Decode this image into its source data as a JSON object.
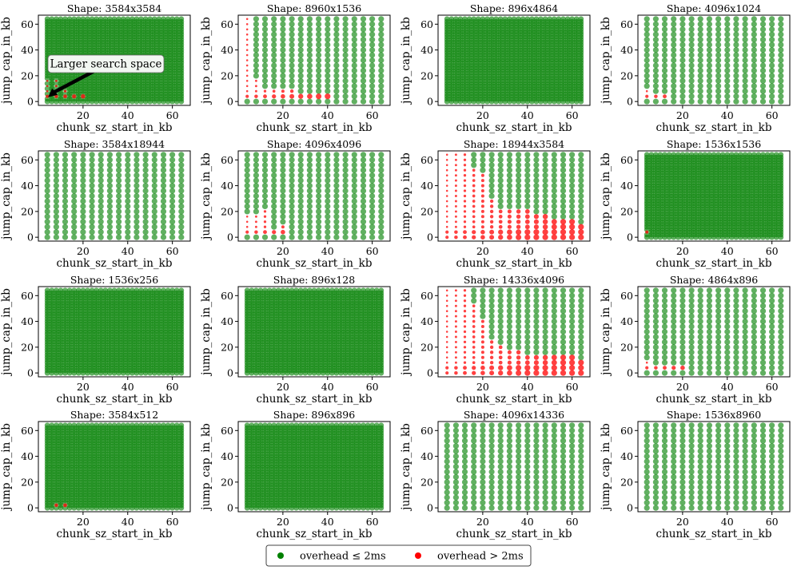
{
  "figure": {
    "legend": {
      "items": [
        {
          "label": "overhead ≤ 2ms",
          "color": "#008000"
        },
        {
          "label": "overhead > 2ms",
          "color": "#ff0000"
        }
      ]
    },
    "annotation": {
      "text": "Larger search space",
      "panel_index": 0,
      "target": {
        "x": 4,
        "y": 4
      }
    }
  },
  "chart_data": [
    {
      "type": "scatter",
      "title": "Shape: 3584x3584",
      "xlabel": "chunk_sz_start_in_kb",
      "ylabel": "jump_cap_in_kb",
      "xlim": [
        0,
        68
      ],
      "ylim": [
        -3,
        67
      ],
      "xticks": [
        20,
        40,
        60
      ],
      "yticks": [
        0,
        20,
        40,
        60
      ],
      "grid": "dense",
      "red_points": [
        [
          4,
          4
        ],
        [
          4,
          8
        ],
        [
          4,
          12
        ],
        [
          4,
          16
        ],
        [
          8,
          4
        ],
        [
          8,
          8
        ],
        [
          8,
          12
        ],
        [
          8,
          16
        ],
        [
          12,
          4
        ],
        [
          12,
          8
        ],
        [
          16,
          4
        ],
        [
          20,
          4
        ]
      ]
    },
    {
      "type": "scatter",
      "title": "Shape: 8960x1536",
      "xlabel": "chunk_sz_start_in_kb",
      "ylabel": "jump_cap_in_kb",
      "xlim": [
        0,
        68
      ],
      "ylim": [
        -3,
        67
      ],
      "xticks": [
        20,
        40,
        60
      ],
      "yticks": [
        0,
        20,
        40,
        60
      ],
      "grid": "normal",
      "red_points": [
        [
          4,
          4
        ],
        [
          4,
          8
        ],
        [
          4,
          12
        ],
        [
          4,
          16
        ],
        [
          4,
          20
        ],
        [
          4,
          24
        ],
        [
          4,
          28
        ],
        [
          4,
          32
        ],
        [
          4,
          36
        ],
        [
          4,
          40
        ],
        [
          4,
          44
        ],
        [
          4,
          48
        ],
        [
          4,
          52
        ],
        [
          4,
          56
        ],
        [
          4,
          60
        ],
        [
          4,
          64
        ],
        [
          8,
          4
        ],
        [
          8,
          8
        ],
        [
          8,
          12
        ],
        [
          8,
          16
        ],
        [
          12,
          4
        ],
        [
          12,
          8
        ],
        [
          16,
          4
        ],
        [
          16,
          8
        ],
        [
          20,
          4
        ],
        [
          20,
          8
        ],
        [
          24,
          4
        ],
        [
          24,
          8
        ],
        [
          28,
          4
        ],
        [
          32,
          4
        ],
        [
          36,
          4
        ],
        [
          40,
          4
        ]
      ]
    },
    {
      "type": "scatter",
      "title": "Shape: 896x4864",
      "xlabel": "chunk_sz_start_in_kb",
      "ylabel": "jump_cap_in_kb",
      "xlim": [
        0,
        68
      ],
      "ylim": [
        -3,
        67
      ],
      "xticks": [
        20,
        40,
        60
      ],
      "yticks": [
        0,
        20,
        40,
        60
      ],
      "grid": "dense",
      "red_points": []
    },
    {
      "type": "scatter",
      "title": "Shape: 4096x1024",
      "xlabel": "chunk_sz_start_in_kb",
      "ylabel": "jump_cap_in_kb",
      "xlim": [
        0,
        68
      ],
      "ylim": [
        -3,
        67
      ],
      "xticks": [
        20,
        40,
        60
      ],
      "yticks": [
        0,
        20,
        40,
        60
      ],
      "grid": "normal",
      "red_points": [
        [
          4,
          4
        ],
        [
          4,
          8
        ],
        [
          8,
          4
        ],
        [
          12,
          4
        ]
      ]
    },
    {
      "type": "scatter",
      "title": "Shape: 3584x18944",
      "xlabel": "chunk_sz_start_in_kb",
      "ylabel": "jump_cap_in_kb",
      "xlim": [
        0,
        68
      ],
      "ylim": [
        -3,
        67
      ],
      "xticks": [
        20,
        40,
        60
      ],
      "yticks": [
        0,
        20,
        40,
        60
      ],
      "grid": "normal",
      "red_points": []
    },
    {
      "type": "scatter",
      "title": "Shape: 4096x4096",
      "xlabel": "chunk_sz_start_in_kb",
      "ylabel": "jump_cap_in_kb",
      "xlim": [
        0,
        68
      ],
      "ylim": [
        -3,
        67
      ],
      "xticks": [
        20,
        40,
        60
      ],
      "yticks": [
        0,
        20,
        40,
        60
      ],
      "grid": "normal",
      "red_points": [
        [
          4,
          4
        ],
        [
          4,
          8
        ],
        [
          4,
          12
        ],
        [
          4,
          16
        ],
        [
          8,
          4
        ],
        [
          8,
          8
        ],
        [
          8,
          12
        ],
        [
          8,
          16
        ],
        [
          12,
          4
        ],
        [
          12,
          8
        ],
        [
          12,
          12
        ],
        [
          12,
          16
        ],
        [
          12,
          20
        ],
        [
          16,
          4
        ],
        [
          20,
          4
        ],
        [
          20,
          8
        ]
      ]
    },
    {
      "type": "scatter",
      "title": "Shape: 18944x3584",
      "xlabel": "chunk_sz_start_in_kb",
      "ylabel": "jump_cap_in_kb",
      "xlim": [
        0,
        68
      ],
      "ylim": [
        -3,
        67
      ],
      "xticks": [
        20,
        40,
        60
      ],
      "yticks": [
        0,
        20,
        40,
        60
      ],
      "grid": "normal",
      "red_columns": [
        [
          4,
          64
        ],
        [
          8,
          64
        ],
        [
          12,
          64
        ],
        [
          16,
          52
        ],
        [
          20,
          48
        ],
        [
          24,
          28
        ],
        [
          28,
          20
        ],
        [
          32,
          20
        ],
        [
          36,
          20
        ],
        [
          40,
          20
        ],
        [
          44,
          16
        ],
        [
          48,
          16
        ],
        [
          52,
          12
        ],
        [
          56,
          12
        ],
        [
          60,
          12
        ],
        [
          64,
          8
        ]
      ]
    },
    {
      "type": "scatter",
      "title": "Shape: 1536x1536",
      "xlabel": "chunk_sz_start_in_kb",
      "ylabel": "jump_cap_in_kb",
      "xlim": [
        0,
        68
      ],
      "ylim": [
        -3,
        67
      ],
      "xticks": [
        20,
        40,
        60
      ],
      "yticks": [
        0,
        20,
        40,
        60
      ],
      "grid": "dense",
      "red_points": [
        [
          4,
          4
        ]
      ]
    },
    {
      "type": "scatter",
      "title": "Shape: 1536x256",
      "xlabel": "chunk_sz_start_in_kb",
      "ylabel": "jump_cap_in_kb",
      "xlim": [
        0,
        68
      ],
      "ylim": [
        -3,
        67
      ],
      "xticks": [
        20,
        40,
        60
      ],
      "yticks": [
        0,
        20,
        40,
        60
      ],
      "grid": "dense",
      "red_points": []
    },
    {
      "type": "scatter",
      "title": "Shape: 896x128",
      "xlabel": "chunk_sz_start_in_kb",
      "ylabel": "jump_cap_in_kb",
      "xlim": [
        0,
        68
      ],
      "ylim": [
        -3,
        67
      ],
      "xticks": [
        20,
        40,
        60
      ],
      "yticks": [
        0,
        20,
        40,
        60
      ],
      "grid": "dense",
      "red_points": []
    },
    {
      "type": "scatter",
      "title": "Shape: 14336x4096",
      "xlabel": "chunk_sz_start_in_kb",
      "ylabel": "jump_cap_in_kb",
      "xlim": [
        0,
        68
      ],
      "ylim": [
        -3,
        67
      ],
      "xticks": [
        20,
        40,
        60
      ],
      "yticks": [
        0,
        20,
        40,
        60
      ],
      "grid": "normal",
      "red_columns": [
        [
          4,
          64
        ],
        [
          8,
          64
        ],
        [
          12,
          64
        ],
        [
          16,
          52
        ],
        [
          20,
          40
        ],
        [
          24,
          24
        ],
        [
          28,
          20
        ],
        [
          32,
          16
        ],
        [
          36,
          16
        ],
        [
          40,
          12
        ],
        [
          44,
          12
        ],
        [
          48,
          12
        ],
        [
          52,
          12
        ],
        [
          56,
          12
        ],
        [
          60,
          12
        ],
        [
          64,
          8
        ]
      ]
    },
    {
      "type": "scatter",
      "title": "Shape: 4864x896",
      "xlabel": "chunk_sz_start_in_kb",
      "ylabel": "jump_cap_in_kb",
      "xlim": [
        0,
        68
      ],
      "ylim": [
        -3,
        67
      ],
      "xticks": [
        20,
        40,
        60
      ],
      "yticks": [
        0,
        20,
        40,
        60
      ],
      "grid": "normal",
      "red_points": [
        [
          4,
          4
        ],
        [
          4,
          8
        ],
        [
          8,
          4
        ],
        [
          12,
          4
        ],
        [
          16,
          4
        ],
        [
          20,
          4
        ]
      ]
    },
    {
      "type": "scatter",
      "title": "Shape: 3584x512",
      "xlabel": "chunk_sz_start_in_kb",
      "ylabel": "jump_cap_in_kb",
      "xlim": [
        0,
        68
      ],
      "ylim": [
        -3,
        67
      ],
      "xticks": [
        20,
        40,
        60
      ],
      "yticks": [
        0,
        20,
        40,
        60
      ],
      "grid": "dense",
      "red_points": [
        [
          8,
          2
        ],
        [
          12,
          2
        ]
      ]
    },
    {
      "type": "scatter",
      "title": "Shape: 896x896",
      "xlabel": "chunk_sz_start_in_kb",
      "ylabel": "jump_cap_in_kb",
      "xlim": [
        0,
        68
      ],
      "ylim": [
        -3,
        67
      ],
      "xticks": [
        20,
        40,
        60
      ],
      "yticks": [
        0,
        20,
        40,
        60
      ],
      "grid": "dense",
      "red_points": []
    },
    {
      "type": "scatter",
      "title": "Shape: 4096x14336",
      "xlabel": "chunk_sz_start_in_kb",
      "ylabel": "jump_cap_in_kb",
      "xlim": [
        0,
        68
      ],
      "ylim": [
        -3,
        67
      ],
      "xticks": [
        20,
        40,
        60
      ],
      "yticks": [
        0,
        20,
        40,
        60
      ],
      "grid": "normal",
      "red_points": []
    },
    {
      "type": "scatter",
      "title": "Shape: 1536x8960",
      "xlabel": "chunk_sz_start_in_kb",
      "ylabel": "jump_cap_in_kb",
      "xlim": [
        0,
        68
      ],
      "ylim": [
        -3,
        67
      ],
      "xticks": [
        20,
        40,
        60
      ],
      "yticks": [
        0,
        20,
        40,
        60
      ],
      "grid": "normal",
      "red_points": []
    }
  ]
}
